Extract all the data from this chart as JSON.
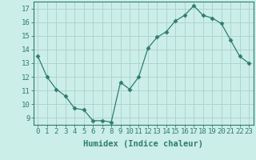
{
  "x": [
    0,
    1,
    2,
    3,
    4,
    5,
    6,
    7,
    8,
    9,
    10,
    11,
    12,
    13,
    14,
    15,
    16,
    17,
    18,
    19,
    20,
    21,
    22,
    23
  ],
  "y": [
    13.5,
    12.0,
    11.1,
    10.6,
    9.7,
    9.6,
    8.8,
    8.8,
    8.7,
    11.6,
    11.1,
    12.0,
    14.1,
    14.9,
    15.3,
    16.1,
    16.5,
    17.2,
    16.5,
    16.3,
    15.9,
    14.7,
    13.5,
    13.0
  ],
  "line_color": "#2e7d6e",
  "marker": "D",
  "marker_size": 2.5,
  "bg_color": "#cceee8",
  "grid_color": "#aed4ce",
  "xlabel": "Humidex (Indice chaleur)",
  "ylim": [
    8.5,
    17.5
  ],
  "xlim": [
    -0.5,
    23.5
  ],
  "yticks": [
    9,
    10,
    11,
    12,
    13,
    14,
    15,
    16,
    17
  ],
  "xticks": [
    0,
    1,
    2,
    3,
    4,
    5,
    6,
    7,
    8,
    9,
    10,
    11,
    12,
    13,
    14,
    15,
    16,
    17,
    18,
    19,
    20,
    21,
    22,
    23
  ],
  "tick_label_fontsize": 6.5,
  "xlabel_fontsize": 7.5
}
